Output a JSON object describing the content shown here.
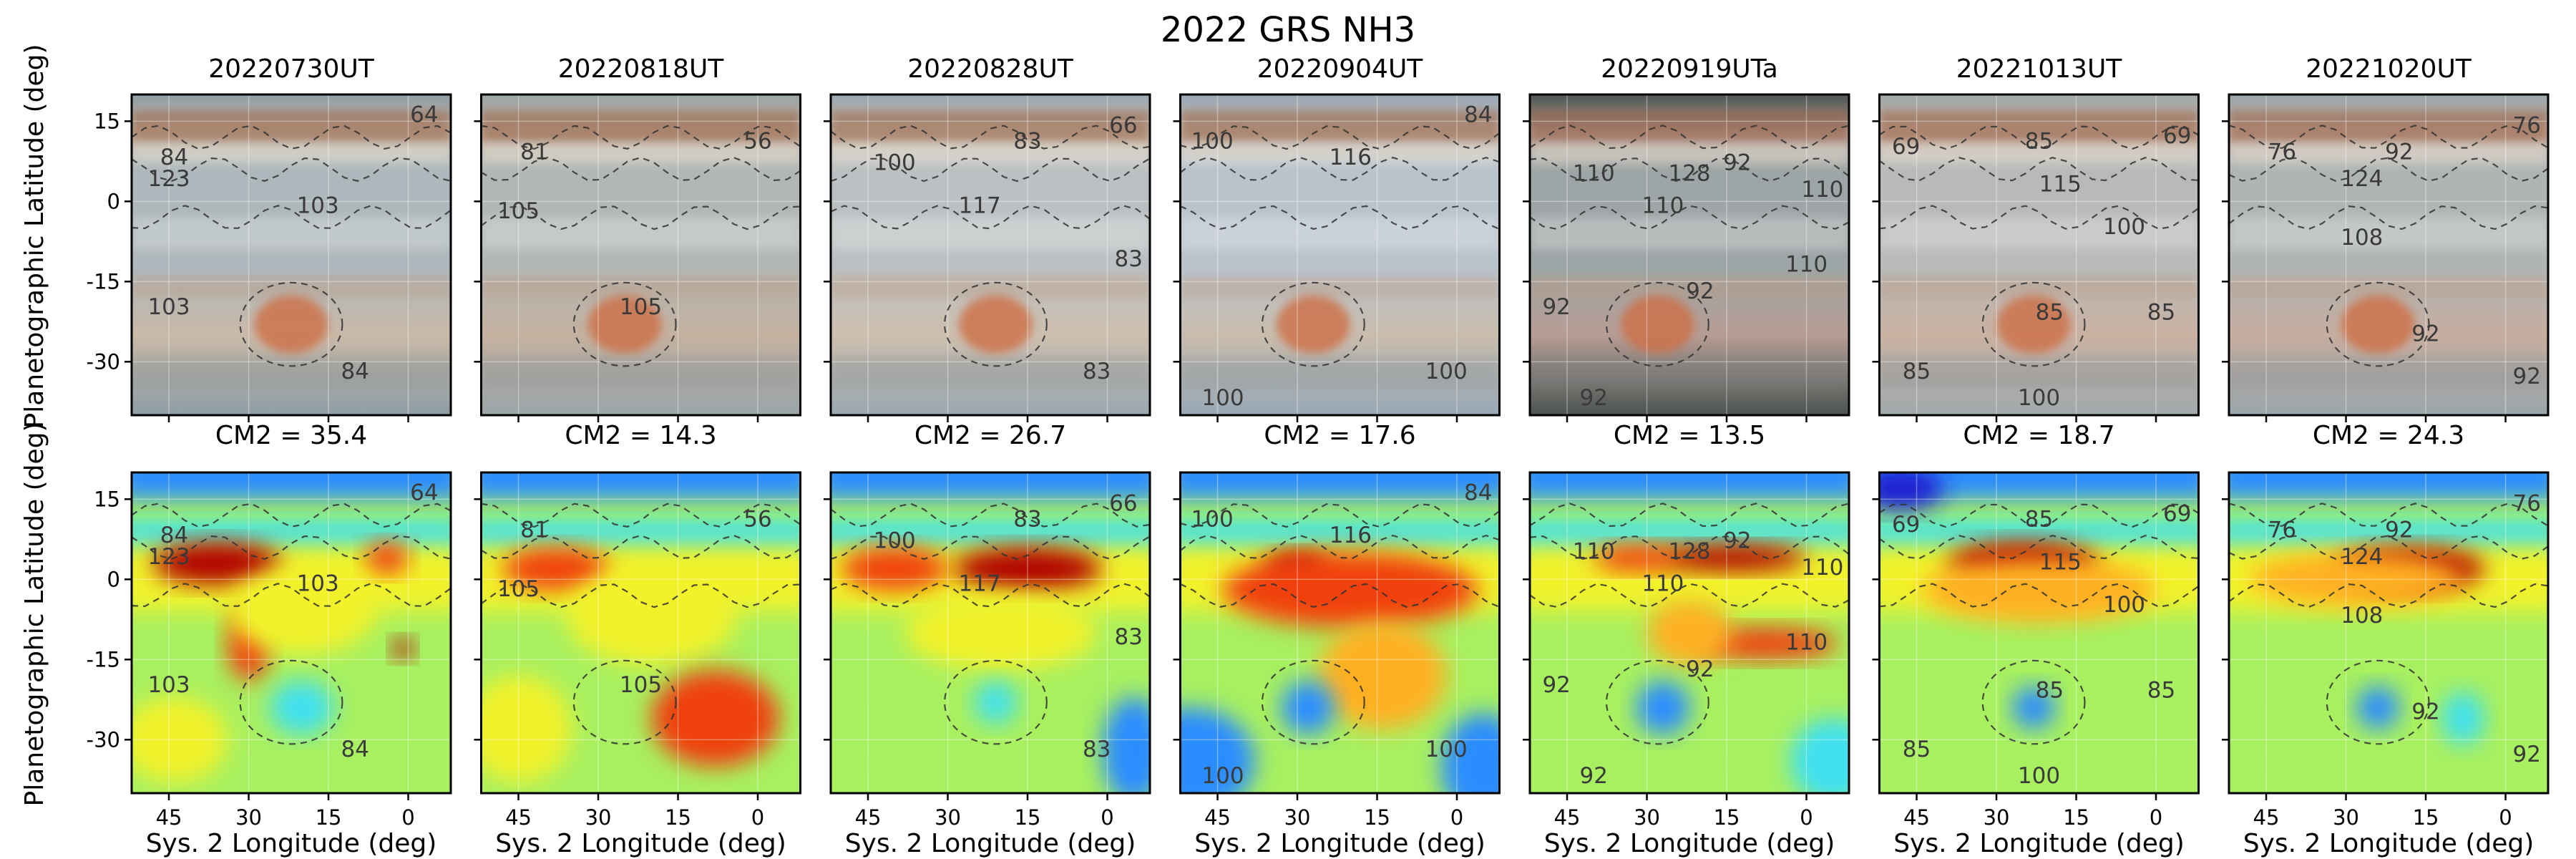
{
  "chart_data": {
    "type": "heatmap",
    "title": "2022 GRS NH3",
    "xlabel": "Sys. 2 Longitude (deg)",
    "ylabel": "Planetographic Latitude (deg)",
    "xticks": [
      45,
      30,
      15,
      0
    ],
    "yticks": [
      15,
      0,
      -15,
      -30
    ],
    "xlim": [
      52,
      -8
    ],
    "ylim": [
      -40,
      20
    ],
    "colormap": [
      "#1f1fd0",
      "#2b8cff",
      "#3fe0f0",
      "#a8f060",
      "#f2f22a",
      "#ffb020",
      "#f04010",
      "#b00000"
    ],
    "panels": [
      {
        "date": "20220730UT",
        "cm2": "CM2 = 35.4",
        "photo_tint": [
          "#aeb7bb",
          "#c9b9a7",
          "#8f9ea6"
        ],
        "grs": {
          "lon": 22,
          "lat": -23,
          "r": 6
        },
        "blobs": [
          {
            "lon": 36,
            "lat": 3,
            "rx": 12,
            "ry": 4,
            "v": 0.95
          },
          {
            "lon": 4,
            "lat": 4,
            "rx": 4,
            "ry": 3,
            "v": 0.9
          },
          {
            "lon": 30,
            "lat": -12,
            "rx": 4,
            "ry": 7,
            "v": 0.85
          },
          {
            "lon": 20,
            "lat": -6,
            "rx": 14,
            "ry": 8,
            "v": 0.62
          },
          {
            "lon": 1,
            "lat": -13,
            "rx": 2,
            "ry": 2,
            "v": 0.95
          },
          {
            "lon": 20,
            "lat": -24,
            "rx": 6,
            "ry": 5,
            "v": 0.25
          },
          {
            "lon": 44,
            "lat": -30,
            "rx": 10,
            "ry": 8,
            "v": 0.55
          }
        ],
        "labels": [
          {
            "text": "84",
            "lon": 44,
            "lat": 8
          },
          {
            "text": "123",
            "lon": 45,
            "lat": 4
          },
          {
            "text": "103",
            "lon": 17,
            "lat": -1
          },
          {
            "text": "103",
            "lon": 45,
            "lat": -20
          },
          {
            "text": "84",
            "lon": 10,
            "lat": -32
          },
          {
            "text": "64",
            "lon": -3,
            "lat": 16
          }
        ]
      },
      {
        "date": "20220818UT",
        "cm2": "CM2 = 14.3",
        "photo_tint": [
          "#b2b7b4",
          "#c4b19f",
          "#9aa5a8"
        ],
        "grs": {
          "lon": 25,
          "lat": -23,
          "r": 6
        },
        "blobs": [
          {
            "lon": 38,
            "lat": 2,
            "rx": 10,
            "ry": 4,
            "v": 0.82
          },
          {
            "lon": 20,
            "lat": -7,
            "rx": 16,
            "ry": 9,
            "v": 0.6
          },
          {
            "lon": 8,
            "lat": -26,
            "rx": 12,
            "ry": 9,
            "v": 0.82
          },
          {
            "lon": 45,
            "lat": -28,
            "rx": 10,
            "ry": 10,
            "v": 0.5
          }
        ],
        "labels": [
          {
            "text": "81",
            "lon": 42,
            "lat": 9
          },
          {
            "text": "105",
            "lon": 45,
            "lat": -2
          },
          {
            "text": "105",
            "lon": 22,
            "lat": -20
          },
          {
            "text": "56",
            "lon": 0,
            "lat": 11
          }
        ]
      },
      {
        "date": "20220828UT",
        "cm2": "CM2 = 26.7",
        "photo_tint": [
          "#bcc0c2",
          "#cdbfae",
          "#9aa7b0"
        ],
        "grs": {
          "lon": 21,
          "lat": -23,
          "r": 6
        },
        "blobs": [
          {
            "lon": 15,
            "lat": 2,
            "rx": 14,
            "ry": 4,
            "v": 1.0
          },
          {
            "lon": 40,
            "lat": 2,
            "rx": 10,
            "ry": 4,
            "v": 0.85
          },
          {
            "lon": 20,
            "lat": -10,
            "rx": 18,
            "ry": 7,
            "v": 0.62
          },
          {
            "lon": 21,
            "lat": -23,
            "rx": 4,
            "ry": 4,
            "v": 0.25
          },
          {
            "lon": -5,
            "lat": -32,
            "rx": 6,
            "ry": 10,
            "v": 0.2
          }
        ],
        "labels": [
          {
            "text": "100",
            "lon": 40,
            "lat": 7
          },
          {
            "text": "83",
            "lon": 15,
            "lat": 11
          },
          {
            "text": "117",
            "lon": 24,
            "lat": -1
          },
          {
            "text": "66",
            "lon": -3,
            "lat": 14
          },
          {
            "text": "83",
            "lon": -4,
            "lat": -11
          },
          {
            "text": "83",
            "lon": 2,
            "lat": -32
          }
        ]
      },
      {
        "date": "20220904UT",
        "cm2": "CM2 = 17.6",
        "photo_tint": [
          "#b9c3cc",
          "#c9bcac",
          "#98a8b6"
        ],
        "grs": {
          "lon": 27,
          "lat": -23,
          "r": 6
        },
        "blobs": [
          {
            "lon": 30,
            "lat": 2,
            "rx": 6,
            "ry": 3,
            "v": 1.0
          },
          {
            "lon": 20,
            "lat": -2,
            "rx": 24,
            "ry": 7,
            "v": 0.85
          },
          {
            "lon": 14,
            "lat": -18,
            "rx": 12,
            "ry": 10,
            "v": 0.78
          },
          {
            "lon": 28,
            "lat": -24,
            "rx": 5,
            "ry": 5,
            "v": 0.15
          },
          {
            "lon": 50,
            "lat": -34,
            "rx": 12,
            "ry": 10,
            "v": 0.12
          },
          {
            "lon": -5,
            "lat": -35,
            "rx": 8,
            "ry": 10,
            "v": 0.1
          }
        ],
        "labels": [
          {
            "text": "100",
            "lon": 46,
            "lat": 11
          },
          {
            "text": "116",
            "lon": 20,
            "lat": 8
          },
          {
            "text": "84",
            "lon": -4,
            "lat": 16
          },
          {
            "text": "100",
            "lon": 2,
            "lat": -32
          },
          {
            "text": "100",
            "lon": 44,
            "lat": -37
          }
        ]
      },
      {
        "date": "20220919UTa",
        "cm2": "CM2 = 13.5",
        "photo_tint": [
          "#9ea5a6",
          "#b79d94",
          "#4c5553"
        ],
        "grs": {
          "lon": 28,
          "lat": -23,
          "r": 6
        },
        "blobs": [
          {
            "lon": 14,
            "lat": 4,
            "rx": 14,
            "ry": 2.5,
            "v": 1.0
          },
          {
            "lon": 32,
            "lat": 4,
            "rx": 8,
            "ry": 2.5,
            "v": 0.85
          },
          {
            "lon": 8,
            "lat": -12,
            "rx": 14,
            "ry": 3,
            "v": 0.8
          },
          {
            "lon": 22,
            "lat": -10,
            "rx": 8,
            "ry": 6,
            "v": 0.7
          },
          {
            "lon": 27,
            "lat": -24,
            "rx": 5,
            "ry": 5,
            "v": 0.2
          },
          {
            "lon": -5,
            "lat": -34,
            "rx": 8,
            "ry": 8,
            "v": 0.3
          }
        ],
        "labels": [
          {
            "text": "110",
            "lon": 40,
            "lat": 5
          },
          {
            "text": "128",
            "lon": 22,
            "lat": 5
          },
          {
            "text": "92",
            "lon": 13,
            "lat": 7
          },
          {
            "text": "110",
            "lon": 27,
            "lat": -1
          },
          {
            "text": "110",
            "lon": -3,
            "lat": 2
          },
          {
            "text": "110",
            "lon": 0,
            "lat": -12
          },
          {
            "text": "92",
            "lon": 47,
            "lat": -20
          },
          {
            "text": "92",
            "lon": 20,
            "lat": -17
          },
          {
            "text": "92",
            "lon": 40,
            "lat": -37
          }
        ]
      },
      {
        "date": "20221013UT",
        "cm2": "CM2 = 18.7",
        "photo_tint": [
          "#b8b9b8",
          "#cab1a1",
          "#a0a9ac"
        ],
        "grs": {
          "lon": 23,
          "lat": -23,
          "r": 6
        },
        "blobs": [
          {
            "lon": 25,
            "lat": 3,
            "rx": 14,
            "ry": 4,
            "v": 1.0
          },
          {
            "lon": 22,
            "lat": -2,
            "rx": 22,
            "ry": 6,
            "v": 0.72
          },
          {
            "lon": 23,
            "lat": -24,
            "rx": 4,
            "ry": 4,
            "v": 0.15
          },
          {
            "lon": 48,
            "lat": 17,
            "rx": 8,
            "ry": 4,
            "v": 0.05
          }
        ],
        "labels": [
          {
            "text": "69",
            "lon": 47,
            "lat": 10
          },
          {
            "text": "85",
            "lon": 22,
            "lat": 11
          },
          {
            "text": "115",
            "lon": 18,
            "lat": 3
          },
          {
            "text": "69",
            "lon": -4,
            "lat": 12
          },
          {
            "text": "100",
            "lon": 6,
            "lat": -5
          },
          {
            "text": "85",
            "lon": 20,
            "lat": -21
          },
          {
            "text": "85",
            "lon": -1,
            "lat": -21
          },
          {
            "text": "85",
            "lon": 45,
            "lat": -32
          },
          {
            "text": "100",
            "lon": 22,
            "lat": -37
          }
        ]
      },
      {
        "date": "20221020UT",
        "cm2": "CM2 = 24.3",
        "photo_tint": [
          "#b0b4b5",
          "#c6ad9f",
          "#9aa6ab"
        ],
        "grs": {
          "lon": 24,
          "lat": -23,
          "r": 6
        },
        "blobs": [
          {
            "lon": 18,
            "lat": 2,
            "rx": 14,
            "ry": 4,
            "v": 1.0
          },
          {
            "lon": 28,
            "lat": 0,
            "rx": 20,
            "ry": 5,
            "v": 0.72
          },
          {
            "lon": 24,
            "lat": -24,
            "rx": 4,
            "ry": 4,
            "v": 0.15
          },
          {
            "lon": 8,
            "lat": -26,
            "rx": 4,
            "ry": 5,
            "v": 0.3
          }
        ],
        "labels": [
          {
            "text": "76",
            "lon": 42,
            "lat": 9
          },
          {
            "text": "92",
            "lon": 20,
            "lat": 9
          },
          {
            "text": "124",
            "lon": 27,
            "lat": 4
          },
          {
            "text": "76",
            "lon": -4,
            "lat": 14
          },
          {
            "text": "108",
            "lon": 27,
            "lat": -7
          },
          {
            "text": "92",
            "lon": 15,
            "lat": -25
          },
          {
            "text": "92",
            "lon": -4,
            "lat": -33
          }
        ]
      }
    ]
  }
}
